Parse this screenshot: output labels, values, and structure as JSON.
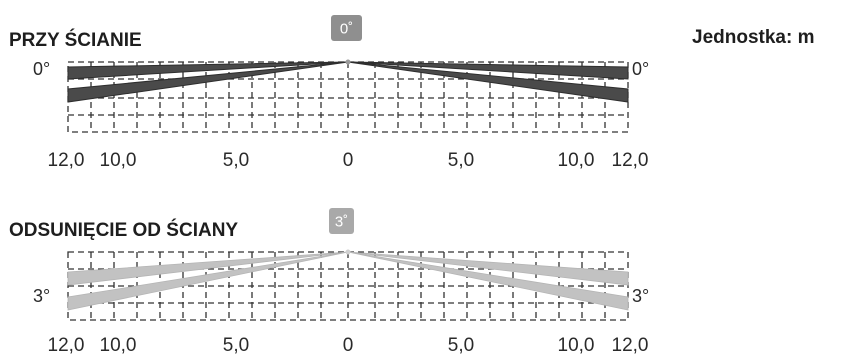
{
  "unit_label": "Jednostka: m",
  "panels": [
    {
      "title": "PRZY ŚCIANIE",
      "badge": "0˚",
      "left_angle": "0°",
      "right_angle": "0°",
      "ticks": [
        "12,0",
        "10,0",
        "5,0",
        "0",
        "5,0",
        "10,0",
        "12,0"
      ],
      "beam_color": "#4a4a4a",
      "badge_color": "#8f8f8f"
    },
    {
      "title": "ODSUNIĘCIE OD ŚCIANY",
      "badge": "3˚",
      "left_angle": "3°",
      "right_angle": "3°",
      "ticks": [
        "12,0",
        "10,0",
        "5,0",
        "0",
        "5,0",
        "10,0",
        "12,0"
      ],
      "beam_color": "#c2c2c2",
      "badge_color": "#a9a9a9"
    }
  ]
}
